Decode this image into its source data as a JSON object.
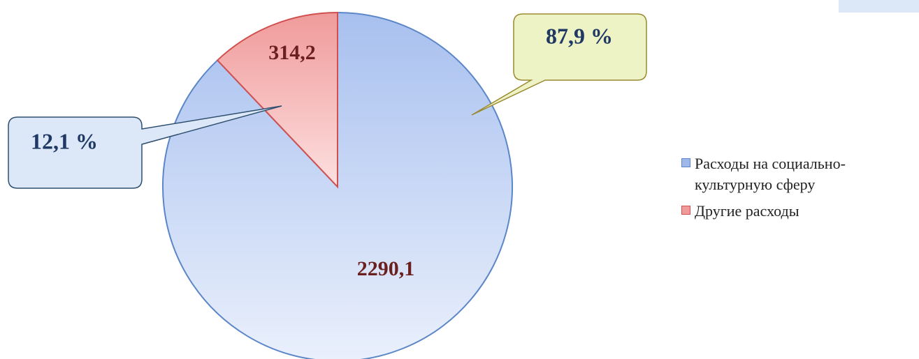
{
  "chart_data": {
    "type": "pie",
    "categories": [
      "Расходы на социально-культурную сферу",
      "Другие расходы"
    ],
    "values": [
      2290.1,
      314.2
    ],
    "value_labels": [
      "2290,1",
      "314,2"
    ],
    "percent_values": [
      87.9,
      12.1
    ],
    "percent_labels": [
      "87,9 %",
      "12,1 %"
    ],
    "colors": [
      "#9fb8ec",
      "#f09a9a"
    ],
    "legend": "right"
  }
}
